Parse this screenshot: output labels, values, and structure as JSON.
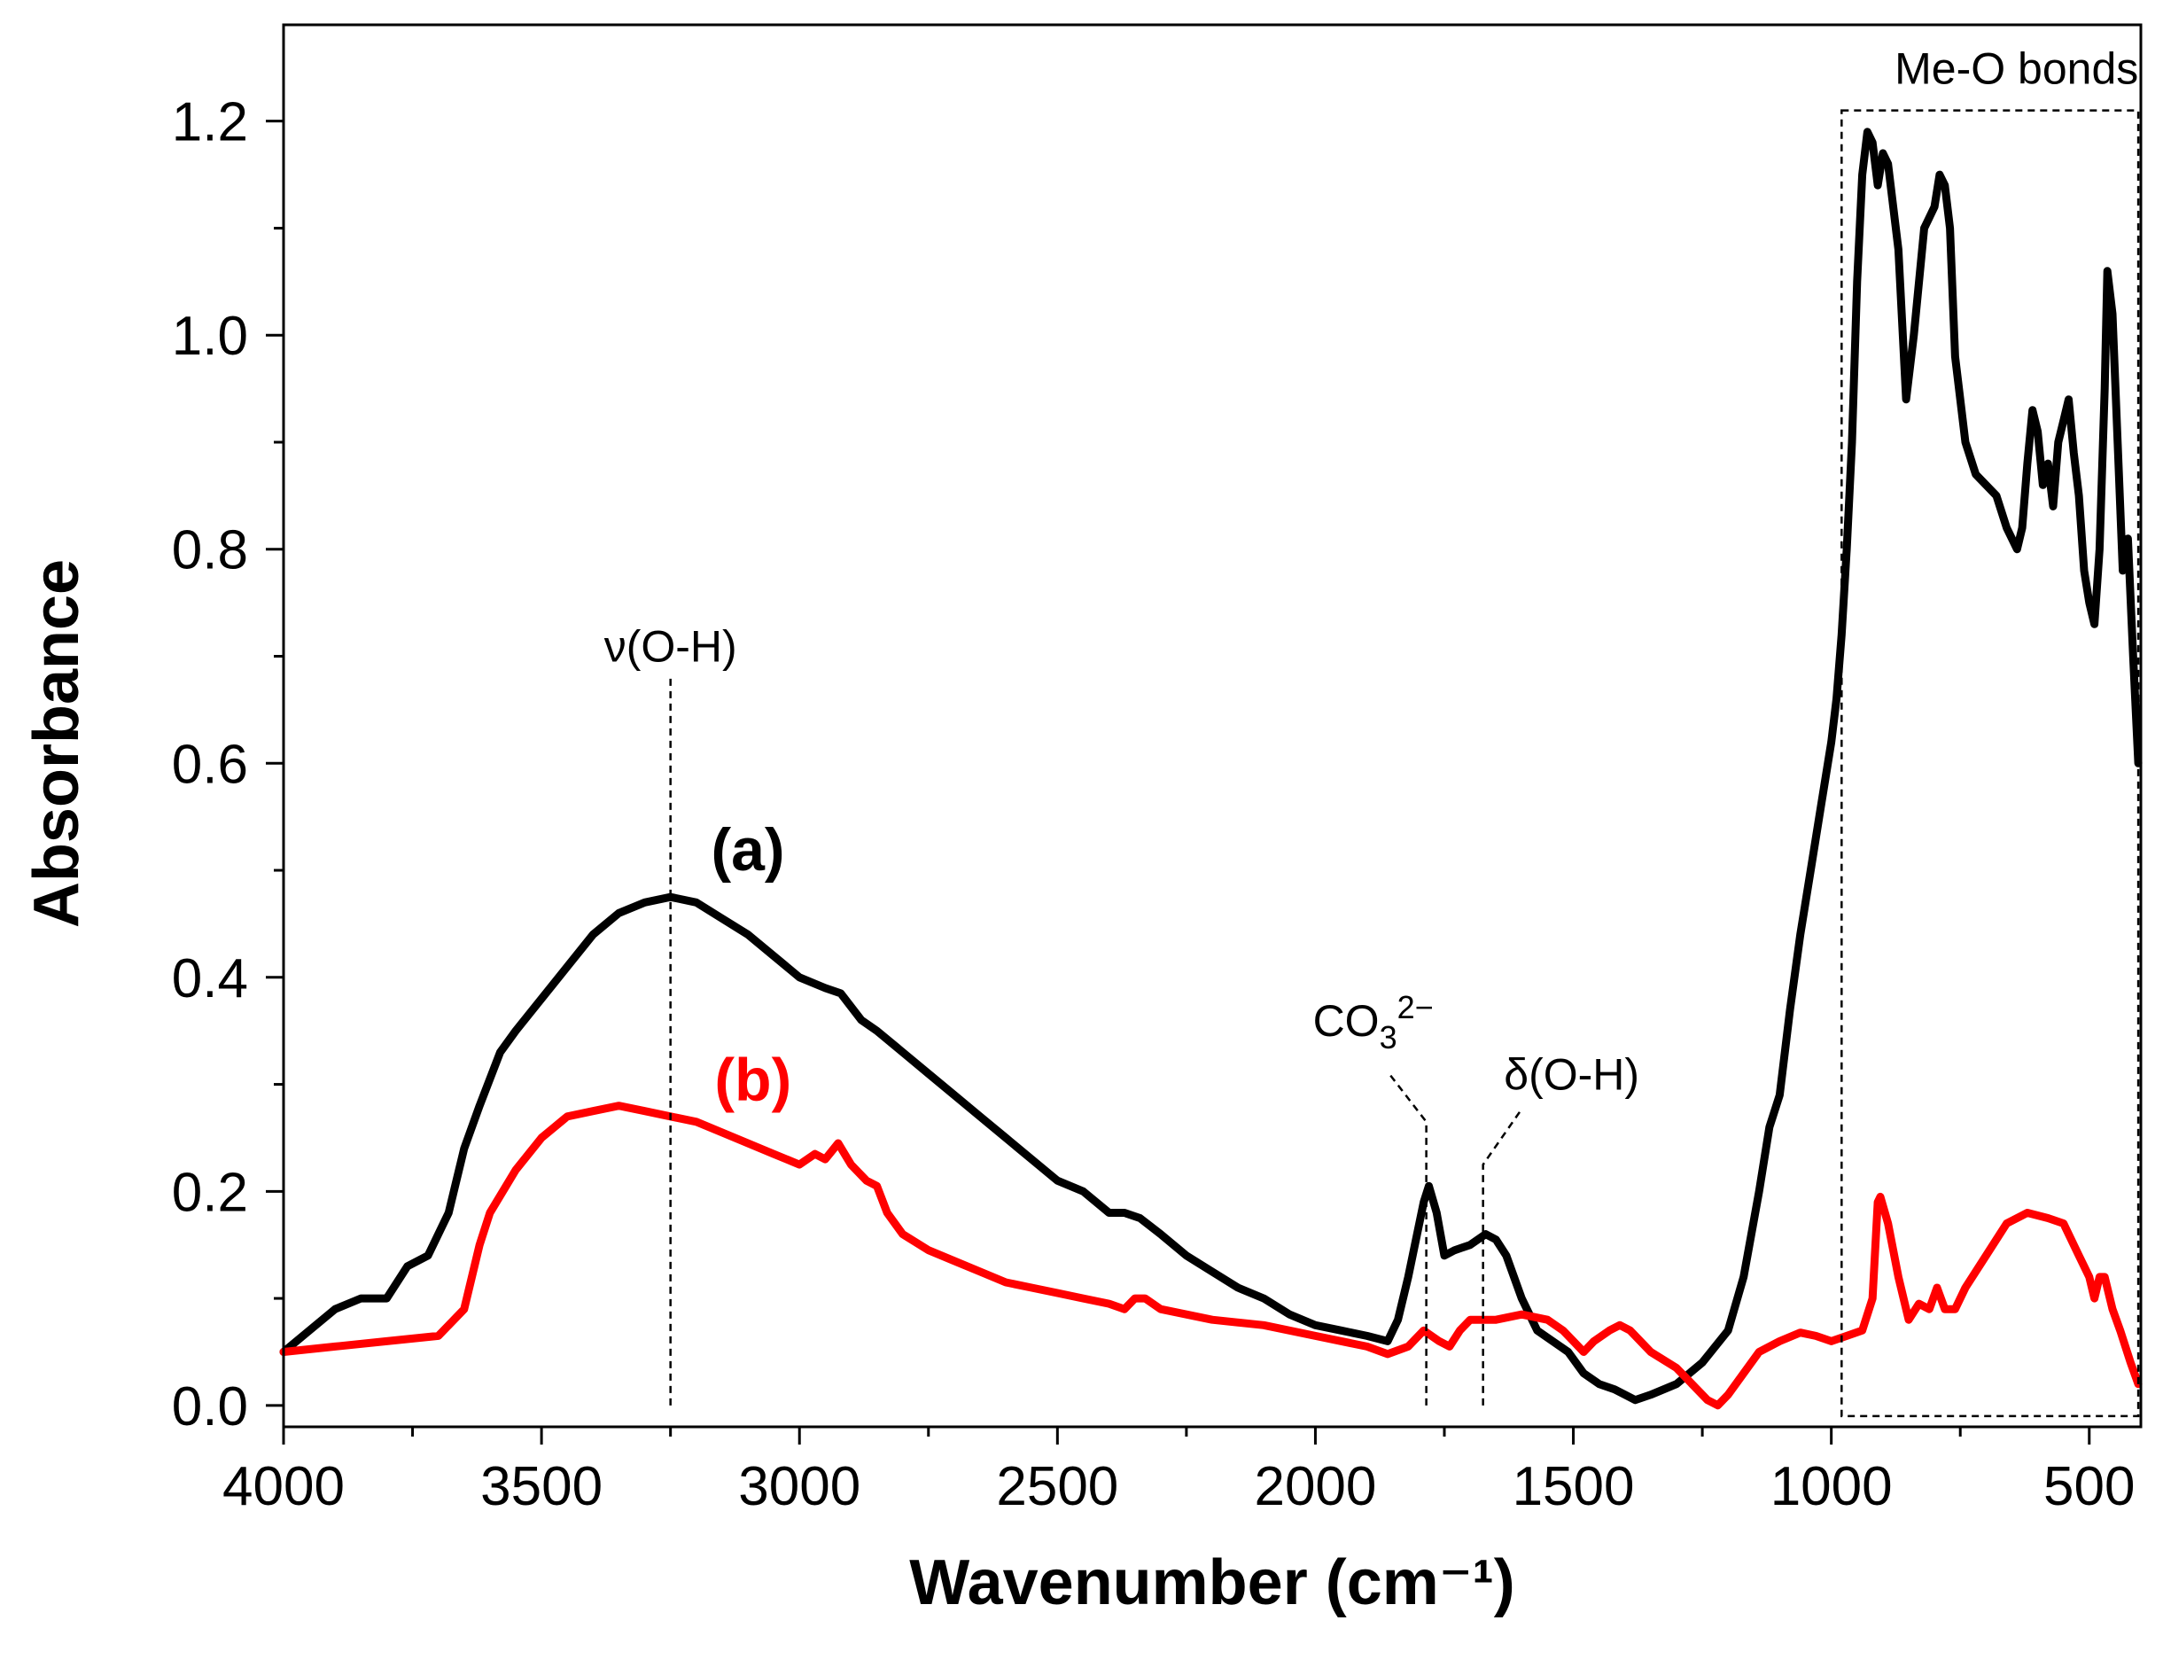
{
  "chart_data": {
    "type": "line",
    "xlabel": "Wavenumber (cm⁻¹)",
    "ylabel": "Absorbance",
    "xlim": [
      4000,
      400
    ],
    "ylim": [
      -0.02,
      1.29
    ],
    "x_reversed": true,
    "x_ticks": [
      4000,
      3500,
      3000,
      2500,
      2000,
      1500,
      1000,
      500
    ],
    "x_tick_labels": [
      "4000",
      "3500",
      "3000",
      "2500",
      "2000",
      "1500",
      "1000",
      "500"
    ],
    "y_ticks": [
      0.0,
      0.2,
      0.4,
      0.6,
      0.8,
      1.0,
      1.2
    ],
    "y_tick_labels": [
      "0.0",
      "0.2",
      "0.4",
      "0.6",
      "0.8",
      "1.0",
      "1.2"
    ],
    "series": [
      {
        "name": "(a)",
        "label": "(a)",
        "color": "#000000",
        "label_pos": [
          3100,
          0.5
        ],
        "points": [
          [
            4000,
            0.05
          ],
          [
            3950,
            0.07
          ],
          [
            3900,
            0.09
          ],
          [
            3850,
            0.1
          ],
          [
            3800,
            0.1
          ],
          [
            3760,
            0.13
          ],
          [
            3720,
            0.14
          ],
          [
            3680,
            0.18
          ],
          [
            3650,
            0.24
          ],
          [
            3620,
            0.28
          ],
          [
            3580,
            0.33
          ],
          [
            3550,
            0.35
          ],
          [
            3500,
            0.38
          ],
          [
            3450,
            0.41
          ],
          [
            3400,
            0.44
          ],
          [
            3350,
            0.46
          ],
          [
            3300,
            0.47
          ],
          [
            3250,
            0.475
          ],
          [
            3200,
            0.47
          ],
          [
            3150,
            0.455
          ],
          [
            3100,
            0.44
          ],
          [
            3050,
            0.42
          ],
          [
            3000,
            0.4
          ],
          [
            2950,
            0.39
          ],
          [
            2920,
            0.385
          ],
          [
            2880,
            0.36
          ],
          [
            2850,
            0.35
          ],
          [
            2800,
            0.33
          ],
          [
            2750,
            0.31
          ],
          [
            2700,
            0.29
          ],
          [
            2650,
            0.27
          ],
          [
            2600,
            0.25
          ],
          [
            2550,
            0.23
          ],
          [
            2500,
            0.21
          ],
          [
            2450,
            0.2
          ],
          [
            2400,
            0.18
          ],
          [
            2370,
            0.18
          ],
          [
            2340,
            0.175
          ],
          [
            2300,
            0.16
          ],
          [
            2250,
            0.14
          ],
          [
            2200,
            0.125
          ],
          [
            2150,
            0.11
          ],
          [
            2100,
            0.1
          ],
          [
            2050,
            0.085
          ],
          [
            2000,
            0.075
          ],
          [
            1950,
            0.07
          ],
          [
            1900,
            0.065
          ],
          [
            1860,
            0.06
          ],
          [
            1840,
            0.08
          ],
          [
            1820,
            0.12
          ],
          [
            1790,
            0.19
          ],
          [
            1780,
            0.205
          ],
          [
            1765,
            0.18
          ],
          [
            1750,
            0.14
          ],
          [
            1730,
            0.145
          ],
          [
            1700,
            0.15
          ],
          [
            1670,
            0.16
          ],
          [
            1650,
            0.155
          ],
          [
            1630,
            0.14
          ],
          [
            1600,
            0.1
          ],
          [
            1570,
            0.07
          ],
          [
            1540,
            0.06
          ],
          [
            1510,
            0.05
          ],
          [
            1480,
            0.03
          ],
          [
            1450,
            0.02
          ],
          [
            1420,
            0.015
          ],
          [
            1400,
            0.01
          ],
          [
            1380,
            0.005
          ],
          [
            1350,
            0.01
          ],
          [
            1300,
            0.02
          ],
          [
            1250,
            0.04
          ],
          [
            1200,
            0.07
          ],
          [
            1170,
            0.12
          ],
          [
            1140,
            0.2
          ],
          [
            1120,
            0.26
          ],
          [
            1100,
            0.29
          ],
          [
            1080,
            0.37
          ],
          [
            1060,
            0.44
          ],
          [
            1040,
            0.5
          ],
          [
            1020,
            0.56
          ],
          [
            1000,
            0.62
          ],
          [
            990,
            0.66
          ],
          [
            980,
            0.72
          ],
          [
            970,
            0.8
          ],
          [
            960,
            0.9
          ],
          [
            950,
            1.05
          ],
          [
            940,
            1.15
          ],
          [
            930,
            1.19
          ],
          [
            920,
            1.18
          ],
          [
            910,
            1.14
          ],
          [
            900,
            1.17
          ],
          [
            890,
            1.16
          ],
          [
            870,
            1.08
          ],
          [
            855,
            0.94
          ],
          [
            840,
            1.0
          ],
          [
            820,
            1.1
          ],
          [
            810,
            1.11
          ],
          [
            800,
            1.12
          ],
          [
            790,
            1.15
          ],
          [
            780,
            1.14
          ],
          [
            770,
            1.1
          ],
          [
            760,
            0.98
          ],
          [
            740,
            0.9
          ],
          [
            720,
            0.87
          ],
          [
            700,
            0.86
          ],
          [
            680,
            0.85
          ],
          [
            660,
            0.82
          ],
          [
            640,
            0.8
          ],
          [
            630,
            0.82
          ],
          [
            620,
            0.88
          ],
          [
            610,
            0.93
          ],
          [
            600,
            0.91
          ],
          [
            590,
            0.86
          ],
          [
            580,
            0.88
          ],
          [
            570,
            0.84
          ],
          [
            560,
            0.9
          ],
          [
            550,
            0.92
          ],
          [
            540,
            0.94
          ],
          [
            530,
            0.89
          ],
          [
            520,
            0.85
          ],
          [
            510,
            0.78
          ],
          [
            500,
            0.75
          ],
          [
            490,
            0.73
          ],
          [
            480,
            0.8
          ],
          [
            470,
            0.95
          ],
          [
            465,
            1.06
          ],
          [
            455,
            1.02
          ],
          [
            445,
            0.9
          ],
          [
            435,
            0.78
          ],
          [
            425,
            0.81
          ],
          [
            415,
            0.7
          ],
          [
            405,
            0.6
          ]
        ]
      },
      {
        "name": "(b)",
        "label": "(b)",
        "color": "#ff0000",
        "label_pos": [
          3090,
          0.285
        ],
        "points": [
          [
            4000,
            0.05
          ],
          [
            3900,
            0.055
          ],
          [
            3800,
            0.06
          ],
          [
            3700,
            0.065
          ],
          [
            3650,
            0.09
          ],
          [
            3620,
            0.15
          ],
          [
            3600,
            0.18
          ],
          [
            3550,
            0.22
          ],
          [
            3500,
            0.25
          ],
          [
            3450,
            0.27
          ],
          [
            3400,
            0.275
          ],
          [
            3350,
            0.28
          ],
          [
            3300,
            0.275
          ],
          [
            3250,
            0.27
          ],
          [
            3200,
            0.265
          ],
          [
            3150,
            0.255
          ],
          [
            3100,
            0.245
          ],
          [
            3050,
            0.235
          ],
          [
            3000,
            0.225
          ],
          [
            2970,
            0.235
          ],
          [
            2950,
            0.23
          ],
          [
            2925,
            0.245
          ],
          [
            2900,
            0.225
          ],
          [
            2870,
            0.21
          ],
          [
            2850,
            0.205
          ],
          [
            2830,
            0.18
          ],
          [
            2800,
            0.16
          ],
          [
            2750,
            0.145
          ],
          [
            2700,
            0.135
          ],
          [
            2650,
            0.125
          ],
          [
            2600,
            0.115
          ],
          [
            2550,
            0.11
          ],
          [
            2500,
            0.105
          ],
          [
            2450,
            0.1
          ],
          [
            2400,
            0.095
          ],
          [
            2370,
            0.09
          ],
          [
            2350,
            0.1
          ],
          [
            2330,
            0.1
          ],
          [
            2300,
            0.09
          ],
          [
            2250,
            0.085
          ],
          [
            2200,
            0.08
          ],
          [
            2100,
            0.075
          ],
          [
            2000,
            0.065
          ],
          [
            1900,
            0.055
          ],
          [
            1860,
            0.048
          ],
          [
            1820,
            0.055
          ],
          [
            1790,
            0.07
          ],
          [
            1760,
            0.06
          ],
          [
            1740,
            0.055
          ],
          [
            1720,
            0.07
          ],
          [
            1700,
            0.08
          ],
          [
            1650,
            0.08
          ],
          [
            1600,
            0.085
          ],
          [
            1550,
            0.08
          ],
          [
            1520,
            0.07
          ],
          [
            1500,
            0.06
          ],
          [
            1480,
            0.05
          ],
          [
            1460,
            0.06
          ],
          [
            1430,
            0.07
          ],
          [
            1410,
            0.075
          ],
          [
            1390,
            0.07
          ],
          [
            1350,
            0.05
          ],
          [
            1300,
            0.035
          ],
          [
            1270,
            0.02
          ],
          [
            1240,
            0.005
          ],
          [
            1220,
            0.0
          ],
          [
            1200,
            0.01
          ],
          [
            1170,
            0.03
          ],
          [
            1140,
            0.05
          ],
          [
            1100,
            0.06
          ],
          [
            1060,
            0.068
          ],
          [
            1030,
            0.065
          ],
          [
            1000,
            0.06
          ],
          [
            970,
            0.065
          ],
          [
            940,
            0.07
          ],
          [
            920,
            0.1
          ],
          [
            910,
            0.19
          ],
          [
            905,
            0.195
          ],
          [
            890,
            0.17
          ],
          [
            870,
            0.12
          ],
          [
            850,
            0.08
          ],
          [
            830,
            0.095
          ],
          [
            810,
            0.09
          ],
          [
            795,
            0.11
          ],
          [
            780,
            0.09
          ],
          [
            760,
            0.09
          ],
          [
            740,
            0.11
          ],
          [
            700,
            0.14
          ],
          [
            660,
            0.17
          ],
          [
            620,
            0.18
          ],
          [
            580,
            0.175
          ],
          [
            550,
            0.17
          ],
          [
            520,
            0.14
          ],
          [
            500,
            0.12
          ],
          [
            490,
            0.1
          ],
          [
            480,
            0.12
          ],
          [
            470,
            0.12
          ],
          [
            455,
            0.09
          ],
          [
            440,
            0.07
          ],
          [
            420,
            0.04
          ],
          [
            405,
            0.02
          ]
        ]
      }
    ],
    "annotations": [
      {
        "text": "ν(O-H)",
        "x": 3250,
        "line_from": 0.0,
        "line_to": 0.68
      },
      {
        "text": "CO",
        "sub": "3",
        "sup": "2−",
        "x": 1785
      },
      {
        "text": "δ(O-H)",
        "x": 1675
      }
    ],
    "box": {
      "label": "Me-O bonds",
      "x_from": 980,
      "x_to": 405,
      "y_from": -0.01,
      "y_to": 1.21
    }
  }
}
